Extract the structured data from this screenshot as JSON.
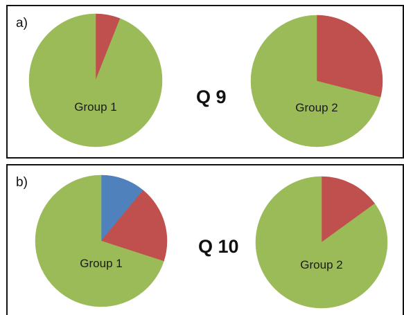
{
  "chart_data": [
    {
      "type": "pie",
      "panel_label": "a)",
      "title": "Q 9",
      "charts": [
        {
          "label": "Group 1",
          "slices": [
            {
              "color": "#c0504d",
              "value": 6
            },
            {
              "color": "#9bbb59",
              "value": 94
            }
          ]
        },
        {
          "label": "Group 2",
          "slices": [
            {
              "color": "#c0504d",
              "value": 29
            },
            {
              "color": "#9bbb59",
              "value": 71
            }
          ]
        }
      ]
    },
    {
      "type": "pie",
      "panel_label": "b)",
      "title": "Q 10",
      "charts": [
        {
          "label": "Group 1",
          "slices": [
            {
              "color": "#4f81bd",
              "value": 11
            },
            {
              "color": "#c0504d",
              "value": 19
            },
            {
              "color": "#9bbb59",
              "value": 70
            }
          ]
        },
        {
          "label": "Group 2",
          "slices": [
            {
              "color": "#c0504d",
              "value": 15
            },
            {
              "color": "#9bbb59",
              "value": 85
            }
          ]
        }
      ]
    }
  ]
}
